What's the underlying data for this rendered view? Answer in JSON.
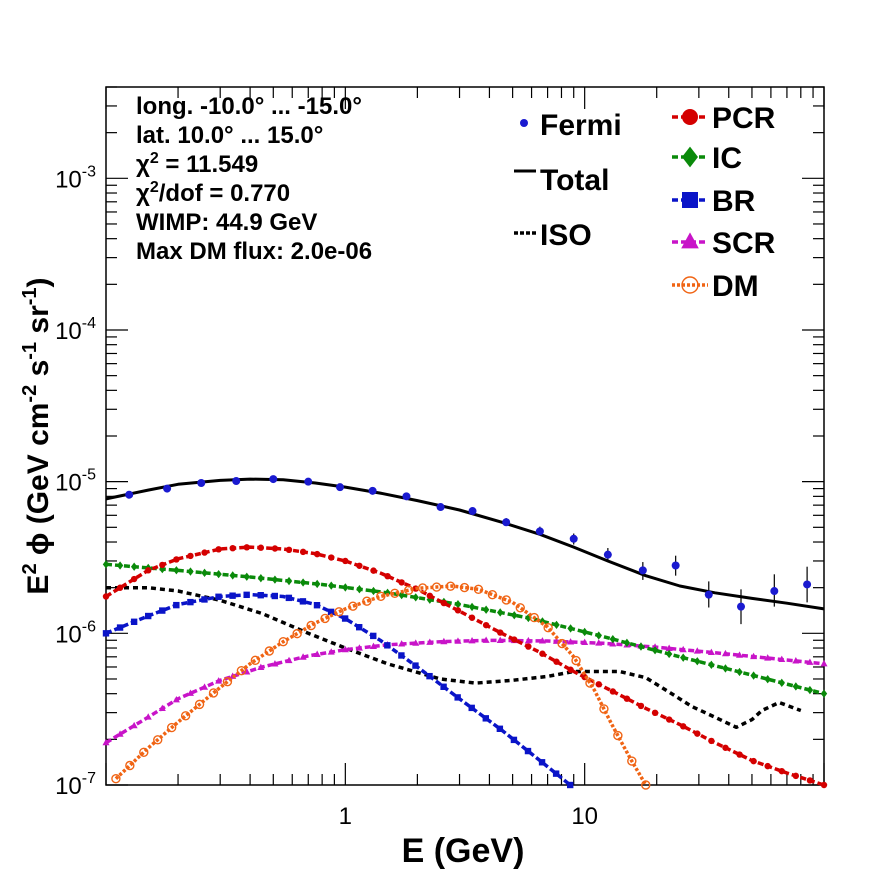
{
  "chart_data": {
    "type": "line",
    "title": "",
    "xlabel": "E (GeV)",
    "ylabel_main": "E",
    "ylabel_sup": "2",
    "ylabel_rest": " ϕ (GeV cm",
    "ylabel_parts": [
      "-2",
      " s",
      "-1",
      " sr",
      "-1",
      ")"
    ],
    "x_scale": "log",
    "y_scale": "log",
    "xlim": [
      0.1,
      100
    ],
    "ylim": [
      1e-07,
      0.004
    ],
    "x_tick_labels": [
      {
        "value": 1,
        "label": "1"
      },
      {
        "value": 10,
        "label": "10"
      }
    ],
    "y_tick_labels": [
      {
        "value": 1e-07,
        "base": "10",
        "exp": "-7"
      },
      {
        "value": 1e-06,
        "base": "10",
        "exp": "-6"
      },
      {
        "value": 1e-05,
        "base": "10",
        "exp": "-5"
      },
      {
        "value": 0.0001,
        "base": "10",
        "exp": "-4"
      },
      {
        "value": 0.001,
        "base": "10",
        "exp": "-3"
      }
    ],
    "annotations": [
      "long. -10.0° ... -15.0°",
      "lat. 10.0° ... 15.0°",
      "χ² = 11.549",
      "χ²/dof = 0.770",
      "WIMP: 44.9 GeV",
      "Max DM flux: 2.0e-06"
    ],
    "legend_left": [
      {
        "name": "Fermi",
        "style": "points",
        "color": "#1a1ad0"
      },
      {
        "name": "Total",
        "style": "line",
        "color": "#000000"
      },
      {
        "name": "ISO",
        "style": "dotted",
        "color": "#000000"
      }
    ],
    "legend_right": [
      {
        "name": "PCR",
        "marker": "circle",
        "color": "#d40000"
      },
      {
        "name": "IC",
        "marker": "diamond",
        "color": "#0a8a0a"
      },
      {
        "name": "BR",
        "marker": "square",
        "color": "#0a14c8"
      },
      {
        "name": "SCR",
        "marker": "triangle",
        "color": "#c814c8"
      },
      {
        "name": "DM",
        "marker": "open-circle",
        "color": "#f06414"
      }
    ],
    "fermi": {
      "x": [
        0.125,
        0.18,
        0.25,
        0.35,
        0.5,
        0.7,
        0.95,
        1.3,
        1.8,
        2.5,
        3.4,
        4.7,
        6.5,
        9.0,
        12.5,
        17.5,
        24,
        33,
        45,
        62,
        85
      ],
      "y": [
        8.2e-06,
        9e-06,
        9.8e-06,
        1.01e-05,
        1.04e-05,
        1e-05,
        9.2e-06,
        8.7e-06,
        8e-06,
        6.8e-06,
        6.4e-06,
        5.4e-06,
        4.7e-06,
        4.2e-06,
        3.3e-06,
        2.6e-06,
        2.8e-06,
        1.8e-06,
        1.5e-06,
        1.9e-06,
        2.1e-06
      ],
      "err_lo": [
        0,
        0,
        0,
        0,
        0,
        0,
        0,
        0,
        0,
        0,
        0,
        0,
        0,
        3.5e-07,
        3.5e-07,
        3.5e-07,
        4e-07,
        3.2e-07,
        3.5e-07,
        4e-07,
        5e-07
      ],
      "err_hi": [
        0,
        0,
        0,
        0,
        0,
        0,
        0,
        0,
        0,
        3.5e-07,
        3.5e-07,
        3.5e-07,
        3.5e-07,
        3.5e-07,
        3.5e-07,
        3.5e-07,
        4.5e-07,
        4e-07,
        4.5e-07,
        5.5e-07,
        6.5e-07
      ]
    },
    "series": [
      {
        "key": "total",
        "name": "Total",
        "color": "#000000",
        "style": "solid",
        "marker": "none",
        "x": [
          0.1,
          0.15,
          0.2,
          0.3,
          0.4,
          0.55,
          0.75,
          1.0,
          1.4,
          2.0,
          3.0,
          4.5,
          6.5,
          9.0,
          12.5,
          18,
          25,
          35,
          50,
          70,
          100
        ],
        "y": [
          7.7e-06,
          8.8e-06,
          9.6e-06,
          1.02e-05,
          1.04e-05,
          1.03e-05,
          9.8e-06,
          9.2e-06,
          8.4e-06,
          7.5e-06,
          6.5e-06,
          5.4e-06,
          4.5e-06,
          3.7e-06,
          3e-06,
          2.4e-06,
          2.05e-06,
          1.85e-06,
          1.7e-06,
          1.58e-06,
          1.45e-06
        ]
      },
      {
        "key": "pcr",
        "name": "PCR",
        "color": "#d40000",
        "style": "dashed",
        "marker": "circle",
        "x": [
          0.1,
          0.15,
          0.2,
          0.3,
          0.4,
          0.55,
          0.75,
          1.0,
          1.4,
          2.0,
          3.0,
          4.5,
          6.5,
          9.0,
          12.5,
          18,
          25,
          35,
          50,
          70,
          100
        ],
        "y": [
          1.75e-06,
          2.6e-06,
          3.1e-06,
          3.6e-06,
          3.7e-06,
          3.6e-06,
          3.35e-06,
          3e-06,
          2.5e-06,
          1.95e-06,
          1.4e-06,
          1e-06,
          7.5e-07,
          5.6e-07,
          4.3e-07,
          3.2e-07,
          2.5e-07,
          1.9e-07,
          1.45e-07,
          1.2e-07,
          1e-07
        ]
      },
      {
        "key": "ic",
        "name": "IC",
        "color": "#0a8a0a",
        "style": "dashed",
        "marker": "diamond",
        "x": [
          0.1,
          0.2,
          0.4,
          0.8,
          1.5,
          3.0,
          6.0,
          12,
          25,
          50,
          100
        ],
        "y": [
          2.85e-06,
          2.6e-06,
          2.35e-06,
          2.1e-06,
          1.85e-06,
          1.55e-06,
          1.25e-06,
          9.5e-07,
          7e-07,
          5.3e-07,
          4e-07
        ]
      },
      {
        "key": "br",
        "name": "BR",
        "color": "#0a14c8",
        "style": "dashed",
        "marker": "square",
        "x": [
          0.1,
          0.15,
          0.2,
          0.3,
          0.4,
          0.55,
          0.75,
          1.0,
          1.4,
          2.0,
          3.0,
          4.5,
          6.5,
          8.7
        ],
        "y": [
          1e-06,
          1.3e-06,
          1.55e-06,
          1.75e-06,
          1.8e-06,
          1.75e-06,
          1.55e-06,
          1.25e-06,
          9e-07,
          6e-07,
          3.7e-07,
          2.3e-07,
          1.45e-07,
          1e-07
        ]
      },
      {
        "key": "scr",
        "name": "SCR",
        "color": "#c814c8",
        "style": "dashed",
        "marker": "triangle",
        "x": [
          0.1,
          0.15,
          0.2,
          0.3,
          0.45,
          0.7,
          1.0,
          1.5,
          2.5,
          4.0,
          7.0,
          12,
          20,
          40,
          100
        ],
        "y": [
          1.9e-07,
          2.8e-07,
          3.7e-07,
          4.9e-07,
          6e-07,
          7.1e-07,
          7.8e-07,
          8.4e-07,
          8.8e-07,
          9e-07,
          8.9e-07,
          8.6e-07,
          8.1e-07,
          7.3e-07,
          6.3e-07
        ]
      },
      {
        "key": "dm",
        "name": "DM",
        "color": "#f06414",
        "style": "dotted",
        "marker": "open-circle",
        "x": [
          0.11,
          0.15,
          0.2,
          0.3,
          0.4,
          0.55,
          0.75,
          1.0,
          1.4,
          2.0,
          2.8,
          3.6,
          5.0,
          7.0,
          9.0,
          11,
          13,
          15.5,
          18
        ],
        "y": [
          1.1e-07,
          1.75e-07,
          2.6e-07,
          4.4e-07,
          6.3e-07,
          8.8e-07,
          1.17e-06,
          1.45e-06,
          1.75e-06,
          1.98e-06,
          2.05e-06,
          1.95e-06,
          1.6e-06,
          1.1e-06,
          7e-07,
          4.2e-07,
          2.5e-07,
          1.5e-07,
          1e-07
        ]
      },
      {
        "key": "iso",
        "name": "ISO",
        "color": "#000000",
        "style": "dotted-heavy",
        "marker": "none",
        "x": [
          0.1,
          0.15,
          0.2,
          0.3,
          0.45,
          0.7,
          1.0,
          1.5,
          2.5,
          3.5,
          5.0,
          7.0,
          9.0,
          11,
          14,
          18,
          22,
          28,
          35,
          43,
          50,
          55,
          65,
          80
        ],
        "y": [
          2e-06,
          2e-06,
          1.9e-06,
          1.65e-06,
          1.35e-06,
          1e-06,
          8e-07,
          6.3e-07,
          5e-07,
          4.7e-07,
          4.9e-07,
          5.2e-07,
          5.6e-07,
          5.6e-07,
          5.6e-07,
          5.1e-07,
          4.2e-07,
          3.3e-07,
          2.8e-07,
          2.4e-07,
          2.7e-07,
          3.1e-07,
          3.5e-07,
          3.1e-07
        ]
      }
    ]
  }
}
